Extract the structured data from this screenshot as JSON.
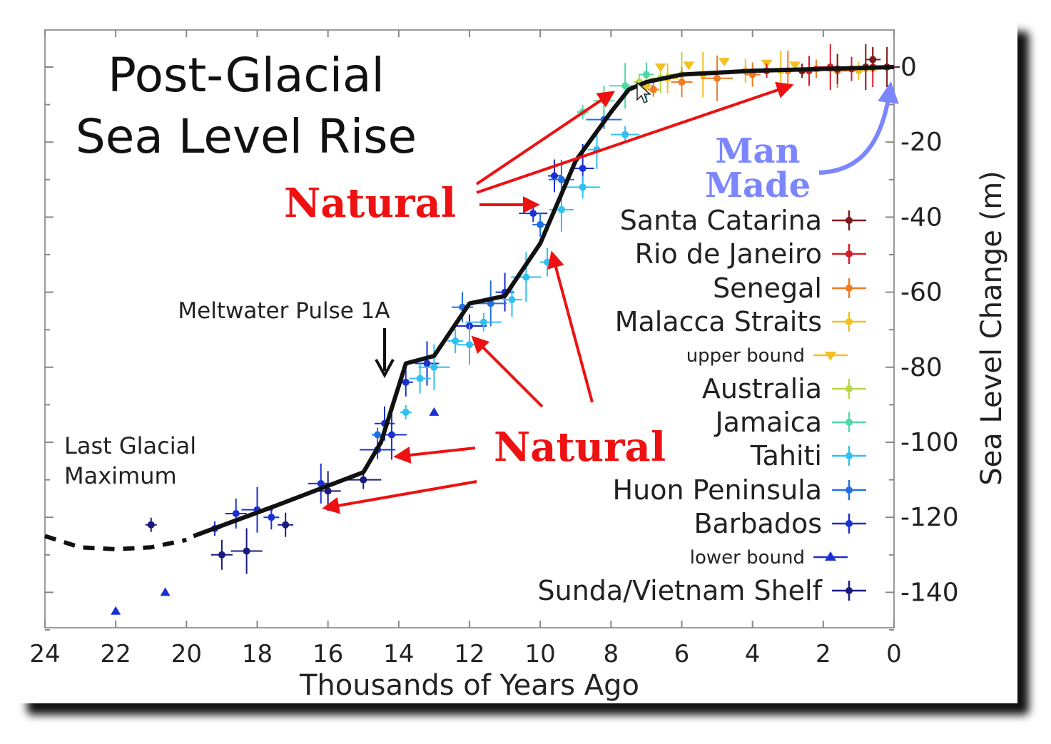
{
  "chart_data": {
    "type": "scatter",
    "title_line1": "Post-Glacial",
    "title_line2": "Sea Level Rise",
    "xlabel": "Thousands of Years Ago",
    "ylabel": "Sea Level Change (m)",
    "xlim": [
      24,
      0
    ],
    "ylim": [
      -150,
      10
    ],
    "x_ticks": [
      24,
      22,
      20,
      18,
      16,
      14,
      12,
      10,
      8,
      6,
      4,
      2,
      0
    ],
    "y_ticks": [
      0,
      -20,
      -40,
      -60,
      -80,
      -100,
      -120,
      -140
    ],
    "annotations": {
      "meltwater": "Meltwater Pulse 1A",
      "lgm_line1": "Last Glacial",
      "lgm_line2": "Maximum",
      "natural_top": "Natural",
      "natural_bottom": "Natural",
      "man_line1": "Man",
      "man_line2": "Made"
    },
    "legend": [
      {
        "label": "Santa Catarina",
        "color": "#7a1a1a",
        "marker": "circle",
        "size": "large"
      },
      {
        "label": "Rio de Janeiro",
        "color": "#d0202a",
        "marker": "circle",
        "size": "large"
      },
      {
        "label": "Senegal",
        "color": "#f07a20",
        "marker": "circle",
        "size": "large"
      },
      {
        "label": "Malacca Straits",
        "color": "#f2c020",
        "marker": "circle",
        "size": "large"
      },
      {
        "label": "upper bound",
        "color": "#f2c020",
        "marker": "tri-down",
        "size": "small"
      },
      {
        "label": "Australia",
        "color": "#b8d840",
        "marker": "circle",
        "size": "large"
      },
      {
        "label": "Jamaica",
        "color": "#50d8a8",
        "marker": "circle",
        "size": "large"
      },
      {
        "label": "Tahiti",
        "color": "#30c0f0",
        "marker": "circle",
        "size": "large"
      },
      {
        "label": "Huon Peninsula",
        "color": "#2070e0",
        "marker": "circle",
        "size": "large"
      },
      {
        "label": "Barbados",
        "color": "#1a30d0",
        "marker": "circle",
        "size": "large"
      },
      {
        "label": "lower bound",
        "color": "#1a30d0",
        "marker": "tri-up",
        "size": "small"
      },
      {
        "label": "Sunda/Vietnam Shelf",
        "color": "#1a1a80",
        "marker": "circle",
        "size": "large"
      }
    ],
    "fit_line": {
      "x": [
        19.8,
        17.5,
        15.0,
        14.5,
        13.8,
        13.0,
        12.0,
        11.0,
        10.0,
        9.0,
        8.0,
        7.5,
        7.0,
        6.0,
        4.0,
        2.0,
        0.0
      ],
      "y": [
        -125,
        -117,
        -108,
        -100,
        -79,
        -77,
        -63,
        -61,
        -47,
        -25,
        -12,
        -6,
        -4,
        -2,
        -1,
        -0.5,
        0
      ]
    },
    "dashed_line": {
      "x": [
        24,
        23,
        22,
        21,
        20
      ],
      "y": [
        -125,
        -128,
        -128.5,
        -128,
        -126
      ]
    },
    "series": [
      {
        "name": "Sunda/Vietnam Shelf",
        "x": [
          21.0,
          19.0,
          18.3,
          17.2,
          16.0,
          15.0
        ],
        "y": [
          -122,
          -130,
          -129,
          -122,
          -113,
          -110
        ]
      },
      {
        "name": "Barbados",
        "x": [
          19.2,
          18.6,
          18.0,
          17.6,
          16.2,
          14.6,
          14.4,
          14.2,
          13.8,
          13.2,
          12.0,
          11.0,
          10.2,
          9.6,
          8.8
        ],
        "y": [
          -123,
          -119,
          -118,
          -120,
          -111,
          -102,
          -95,
          -98,
          -84,
          -79,
          -69,
          -60,
          -39,
          -29,
          -27
        ]
      },
      {
        "name": "lower bound",
        "x": [
          22.0,
          20.6,
          13.0
        ],
        "y": [
          -145,
          -140,
          -92
        ]
      },
      {
        "name": "Huon Peninsula",
        "x": [
          14.6,
          12.2,
          11.4,
          10.0,
          9.4,
          8.2
        ],
        "y": [
          -98,
          -64,
          -63,
          -42,
          -30,
          -14
        ]
      },
      {
        "name": "Tahiti",
        "x": [
          13.8,
          13.4,
          13.0,
          12.4,
          12.0,
          11.6,
          10.8,
          10.4,
          9.8,
          9.4,
          8.8,
          8.4,
          7.6,
          7.0
        ],
        "y": [
          -92,
          -83,
          -80,
          -73,
          -74,
          -68,
          -62,
          -56,
          -52,
          -38,
          -32,
          -22,
          -18,
          -5
        ]
      },
      {
        "name": "Jamaica",
        "x": [
          8.8,
          8.2,
          7.6,
          7.0
        ],
        "y": [
          -12,
          -9,
          -5,
          -2
        ]
      },
      {
        "name": "Australia",
        "x": [
          7.2,
          6.6,
          6.0
        ],
        "y": [
          -4,
          -3,
          -2
        ]
      },
      {
        "name": "upper bound",
        "x": [
          6.6,
          5.8,
          4.8,
          3.6,
          2.8
        ],
        "y": [
          0,
          0.5,
          1.5,
          1,
          0.5
        ]
      },
      {
        "name": "Malacca Straits",
        "x": [
          7.0,
          6.4,
          5.4,
          4.2,
          3.2,
          1.0
        ],
        "y": [
          -5,
          -3,
          -2,
          -1,
          -1,
          -1
        ]
      },
      {
        "name": "Senegal",
        "x": [
          6.8,
          6.0,
          5.0,
          4.0,
          3.0,
          2.2,
          1.6
        ],
        "y": [
          -6,
          -4,
          -3,
          -2,
          -1,
          -0.5,
          -1
        ]
      },
      {
        "name": "Rio de Janeiro",
        "x": [
          3.6,
          2.4,
          1.8,
          1.2,
          0.6
        ],
        "y": [
          -1,
          -1,
          0,
          -0.5,
          0
        ]
      },
      {
        "name": "Santa Catarina",
        "x": [
          2.6,
          1.6,
          0.8,
          0.6,
          0.2
        ],
        "y": [
          -1,
          -0.5,
          0,
          2,
          0
        ]
      }
    ]
  }
}
